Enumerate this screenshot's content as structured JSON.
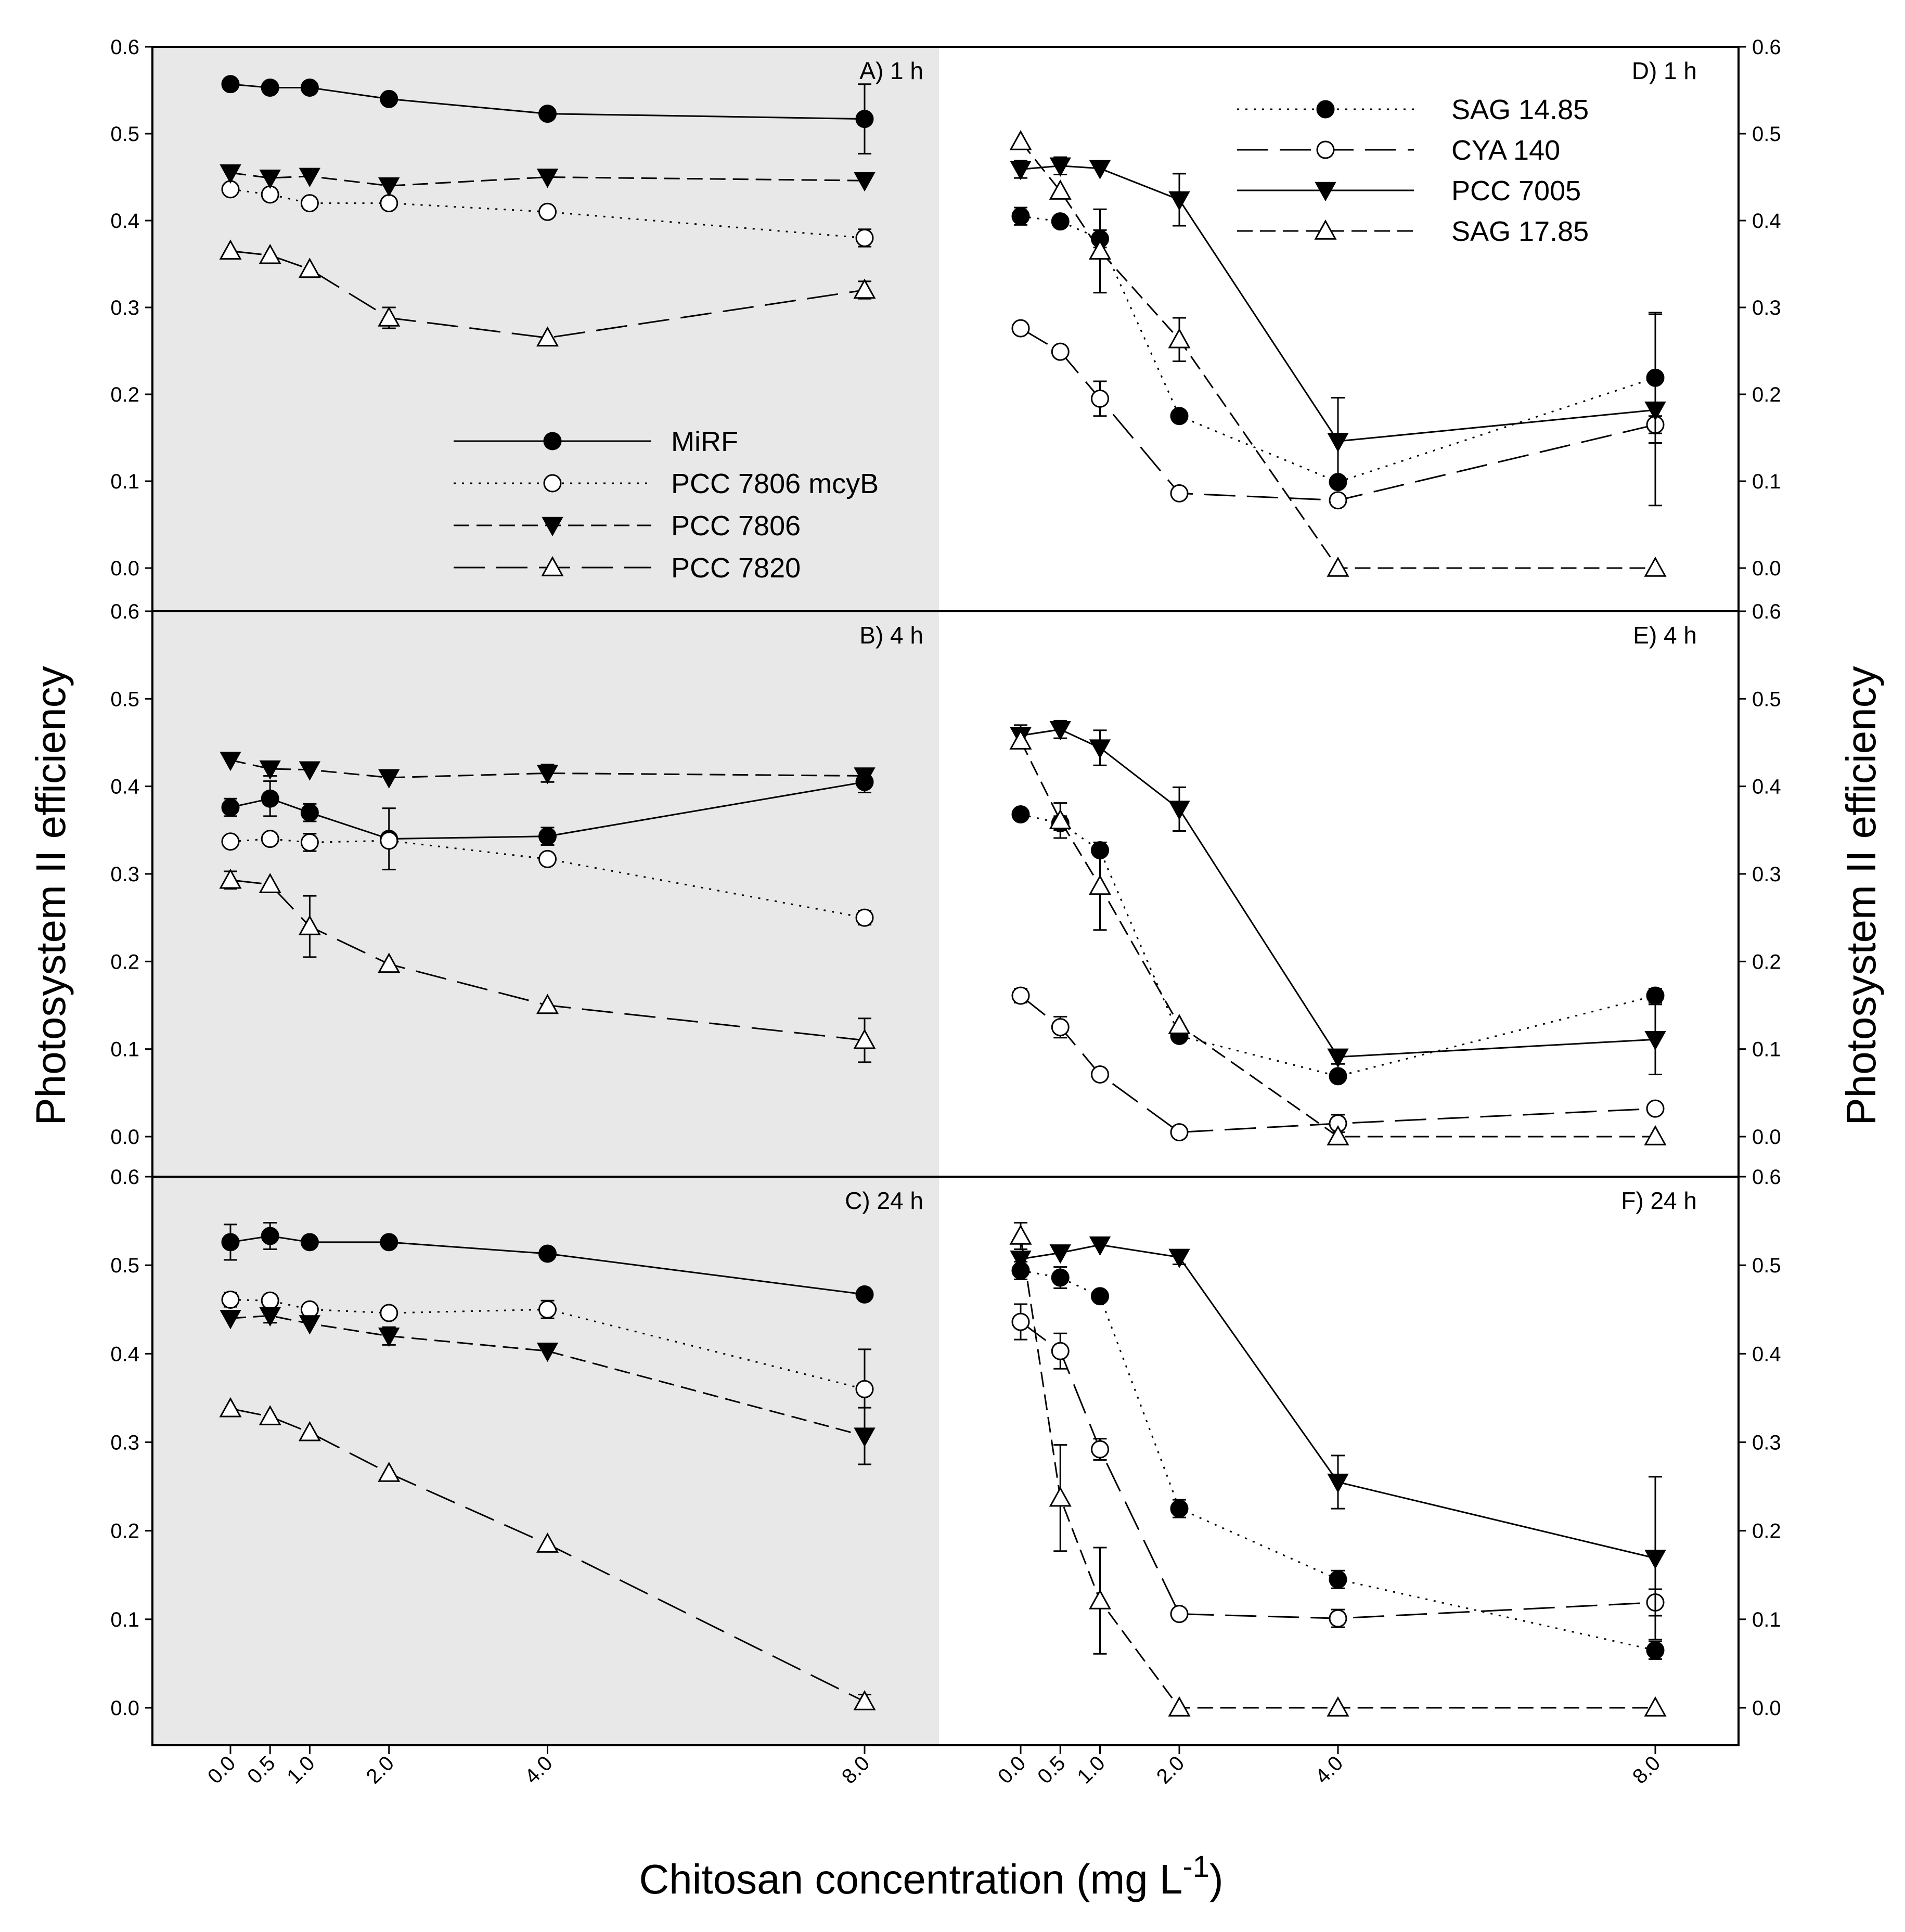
{
  "chart_data": {
    "type": "line",
    "xlabel": "Chitosan concentration (mg L",
    "xlabel_sup": "-1",
    "xlabel_close": ")",
    "ylabel_left": "Photosystem II efficiency",
    "ylabel_right": "Photosystem II efficiency",
    "x": [
      0,
      0.5,
      1,
      2,
      4,
      8
    ],
    "x_tick_labels": [
      "0.0",
      "0.5",
      "1.0",
      "2.0",
      "4.0",
      "8.0"
    ],
    "ylim": [
      -0.05,
      0.6
    ],
    "y_ticks": [
      0.0,
      0.1,
      0.2,
      0.3,
      0.4,
      0.5,
      0.6
    ],
    "y_tick_labels": [
      "0.0",
      "0.1",
      "0.2",
      "0.3",
      "0.4",
      "0.5",
      "0.6"
    ],
    "legends": [
      {
        "location": "left panels",
        "entries": [
          {
            "name": "MiRF",
            "marker": "filled-circle",
            "line": "solid"
          },
          {
            "name": "PCC 7806 mcyB",
            "marker": "open-circle",
            "line": "dotted"
          },
          {
            "name": "PCC 7806",
            "marker": "filled-triangle-down",
            "line": "dashed"
          },
          {
            "name": "PCC 7820",
            "marker": "open-triangle-up",
            "line": "long-dash"
          }
        ]
      },
      {
        "location": "right panels",
        "entries": [
          {
            "name": "SAG 14.85",
            "marker": "filled-circle",
            "line": "dotted"
          },
          {
            "name": "CYA 140",
            "marker": "open-circle",
            "line": "long-dash"
          },
          {
            "name": "PCC 7005",
            "marker": "filled-triangle-down",
            "line": "solid"
          },
          {
            "name": "SAG 17.85",
            "marker": "open-triangle-up",
            "line": "dashed"
          }
        ]
      }
    ],
    "panels": [
      {
        "id": "A",
        "title": "A) 1 h",
        "side": "left",
        "row": 0,
        "series": [
          {
            "name": "MiRF",
            "values": [
              0.557,
              0.553,
              0.553,
              0.54,
              0.523,
              0.517
            ],
            "errors": [
              0.005,
              0.005,
              0.005,
              0.005,
              0.005,
              0.04
            ]
          },
          {
            "name": "PCC 7806 mcyB",
            "values": [
              0.436,
              0.43,
              0.42,
              0.42,
              0.41,
              0.38
            ],
            "errors": [
              0.005,
              0.005,
              0.005,
              0.005,
              0.005,
              0.01
            ]
          },
          {
            "name": "PCC 7806",
            "values": [
              0.455,
              0.449,
              0.451,
              0.44,
              0.45,
              0.446
            ],
            "errors": [
              0.005,
              0.005,
              0.005,
              0.005,
              0.005,
              0.005
            ]
          },
          {
            "name": "PCC 7820",
            "values": [
              0.365,
              0.36,
              0.344,
              0.288,
              0.265,
              0.32
            ],
            "errors": [
              0.005,
              0.005,
              0.005,
              0.012,
              0.005,
              0.01
            ]
          }
        ]
      },
      {
        "id": "B",
        "title": "B) 4 h",
        "side": "left",
        "row": 1,
        "series": [
          {
            "name": "MiRF",
            "values": [
              0.376,
              0.386,
              0.37,
              0.34,
              0.343,
              0.405
            ],
            "errors": [
              0.01,
              0.02,
              0.01,
              0.035,
              0.01,
              0.012
            ]
          },
          {
            "name": "PCC 7806 mcyB",
            "values": [
              0.337,
              0.34,
              0.336,
              0.338,
              0.317,
              0.25
            ],
            "errors": [
              0.005,
              0.005,
              0.01,
              0.005,
              0.005,
              0.008
            ]
          },
          {
            "name": "PCC 7806",
            "values": [
              0.43,
              0.42,
              0.419,
              0.41,
              0.415,
              0.412
            ],
            "errors": [
              0.005,
              0.008,
              0.005,
              0.005,
              0.01,
              0.005
            ]
          },
          {
            "name": "PCC 7820",
            "values": [
              0.293,
              0.288,
              0.24,
              0.197,
              0.15,
              0.11
            ],
            "errors": [
              0.01,
              0.005,
              0.035,
              0.005,
              0.005,
              0.025
            ]
          }
        ]
      },
      {
        "id": "C",
        "title": "C) 24 h",
        "side": "left",
        "row": 2,
        "series": [
          {
            "name": "MiRF",
            "values": [
              0.526,
              0.533,
              0.526,
              0.526,
              0.513,
              0.467
            ],
            "errors": [
              0.02,
              0.015,
              0.005,
              0.005,
              0.005,
              0.005
            ]
          },
          {
            "name": "PCC 7806 mcyB",
            "values": [
              0.461,
              0.46,
              0.45,
              0.446,
              0.45,
              0.36
            ],
            "errors": [
              0.008,
              0.005,
              0.005,
              0.005,
              0.01,
              0.045
            ]
          },
          {
            "name": "PCC 7806",
            "values": [
              0.44,
              0.443,
              0.434,
              0.42,
              0.403,
              0.307
            ],
            "errors": [
              0.005,
              0.008,
              0.005,
              0.01,
              0.005,
              0.032
            ]
          },
          {
            "name": "PCC 7820",
            "values": [
              0.338,
              0.329,
              0.311,
              0.265,
              0.185,
              0.007
            ],
            "errors": [
              0.005,
              0.005,
              0.005,
              0.005,
              0.005,
              0.008
            ]
          }
        ]
      },
      {
        "id": "D",
        "title": "D) 1 h",
        "side": "right",
        "row": 0,
        "series": [
          {
            "name": "SAG 14.85",
            "values": [
              0.405,
              0.399,
              0.379,
              0.175,
              0.099,
              0.219
            ],
            "errors": [
              0.01,
              0.005,
              0.01,
              0.005,
              0.005,
              0.075
            ]
          },
          {
            "name": "CYA 140",
            "values": [
              0.276,
              0.249,
              0.195,
              0.086,
              0.078,
              0.165
            ],
            "errors": [
              0.005,
              0.005,
              0.02,
              0.005,
              0.005,
              0.01
            ]
          },
          {
            "name": "PCC 7005",
            "values": [
              0.459,
              0.463,
              0.46,
              0.424,
              0.146,
              0.182
            ],
            "errors": [
              0.01,
              0.01,
              0.005,
              0.03,
              0.05,
              0.11
            ]
          },
          {
            "name": "SAG 17.85",
            "values": [
              0.491,
              0.434,
              0.365,
              0.263,
              0.0,
              0.0
            ],
            "errors": [
              0.005,
              0.005,
              0.048,
              0.025,
              0.0,
              0.0
            ]
          }
        ]
      },
      {
        "id": "E",
        "title": "E) 4 h",
        "side": "right",
        "row": 1,
        "series": [
          {
            "name": "SAG 14.85",
            "values": [
              0.368,
              0.358,
              0.327,
              0.115,
              0.069,
              0.161
            ],
            "errors": [
              0.005,
              0.008,
              0.005,
              0.005,
              0.005,
              0.008
            ]
          },
          {
            "name": "CYA 140",
            "values": [
              0.161,
              0.125,
              0.071,
              0.005,
              0.015,
              0.032
            ],
            "errors": [
              0.008,
              0.012,
              0.005,
              0.005,
              0.01,
              0.005
            ]
          },
          {
            "name": "PCC 7005",
            "values": [
              0.458,
              0.465,
              0.444,
              0.374,
              0.091,
              0.111
            ],
            "errors": [
              0.012,
              0.01,
              0.02,
              0.025,
              0.008,
              0.04
            ]
          },
          {
            "name": "SAG 17.85",
            "values": [
              0.452,
              0.361,
              0.286,
              0.127,
              0.0,
              0.0
            ],
            "errors": [
              0.005,
              0.02,
              0.05,
              0.005,
              0.0,
              0.0
            ]
          }
        ]
      },
      {
        "id": "F",
        "title": "F) 24 h",
        "side": "right",
        "row": 2,
        "series": [
          {
            "name": "SAG 14.85",
            "values": [
              0.494,
              0.486,
              0.465,
              0.225,
              0.145,
              0.065
            ],
            "errors": [
              0.01,
              0.012,
              0.005,
              0.01,
              0.01,
              0.01
            ]
          },
          {
            "name": "CYA 140",
            "values": [
              0.436,
              0.403,
              0.292,
              0.106,
              0.101,
              0.119
            ],
            "errors": [
              0.02,
              0.02,
              0.012,
              0.005,
              0.01,
              0.015
            ]
          },
          {
            "name": "PCC 7005",
            "values": [
              0.507,
              0.514,
              0.523,
              0.509,
              0.255,
              0.169
            ],
            "errors": [
              0.008,
              0.005,
              0.005,
              0.008,
              0.03,
              0.092
            ]
          },
          {
            "name": "SAG 17.85",
            "values": [
              0.533,
              0.237,
              0.121,
              0.0,
              0.0,
              0.0
            ],
            "errors": [
              0.015,
              0.06,
              0.06,
              0.0,
              0.0,
              0.0
            ]
          }
        ]
      }
    ]
  }
}
